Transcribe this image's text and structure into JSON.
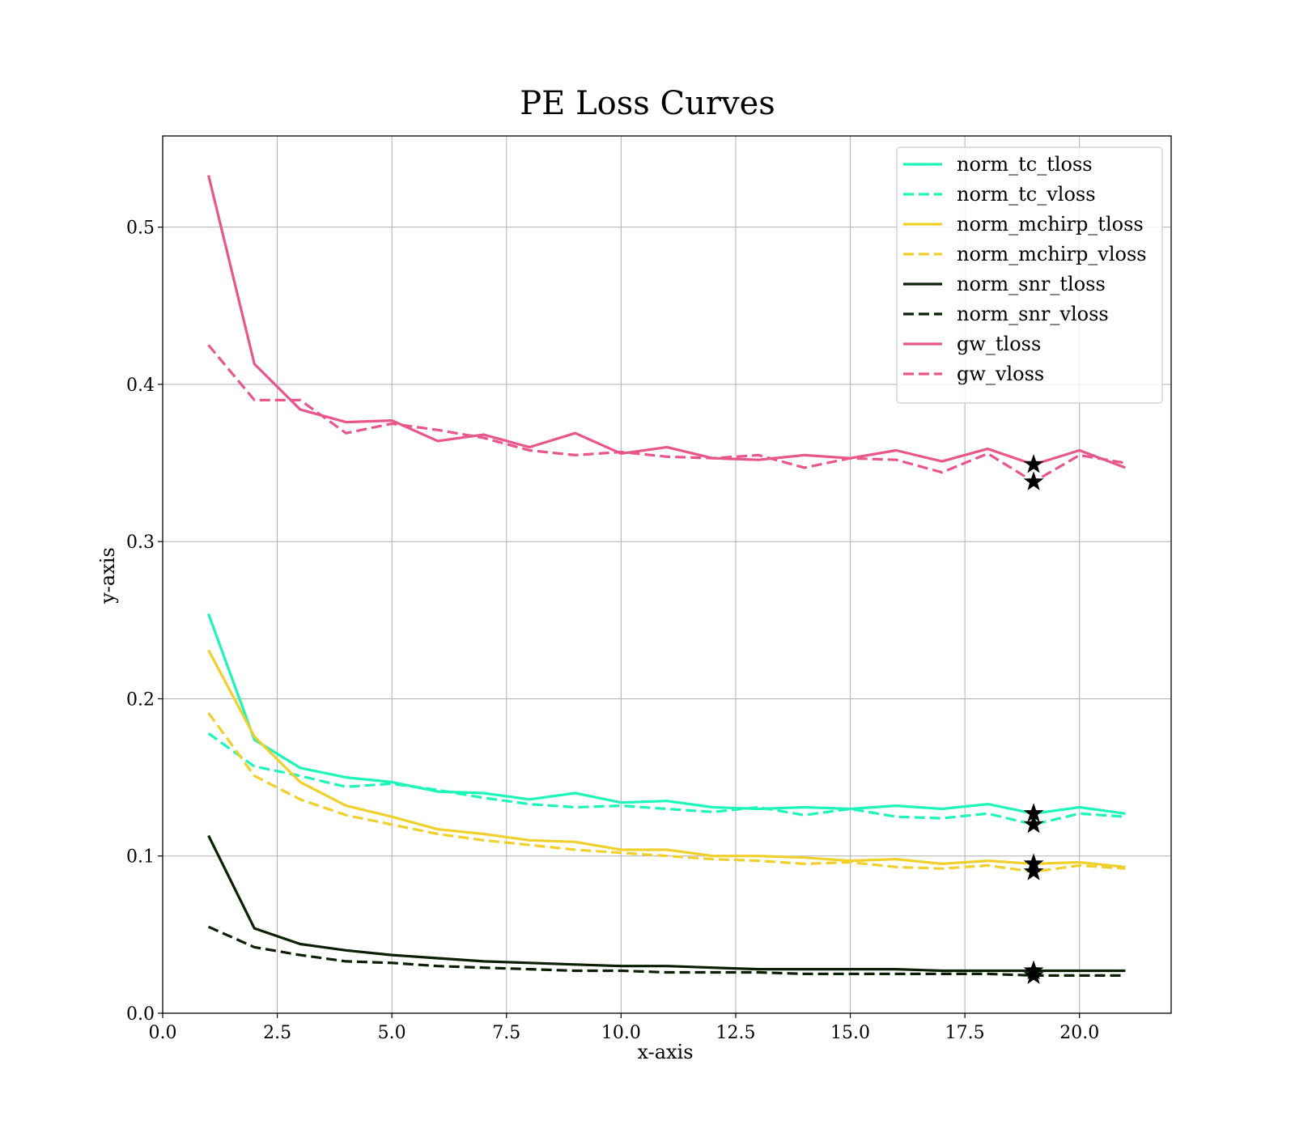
{
  "chart_data": {
    "type": "line",
    "title": "PE Loss Curves",
    "xlabel": "x-axis",
    "ylabel": "y-axis",
    "xlim": [
      0,
      22
    ],
    "ylim": [
      0,
      0.558
    ],
    "xticks": [
      0.0,
      2.5,
      5.0,
      7.5,
      10.0,
      12.5,
      15.0,
      17.5,
      20.0
    ],
    "xtick_labels": [
      "0.0",
      "2.5",
      "5.0",
      "7.5",
      "10.0",
      "12.5",
      "15.0",
      "17.5",
      "20.0"
    ],
    "yticks": [
      0.0,
      0.1,
      0.2,
      0.3,
      0.4,
      0.5
    ],
    "ytick_labels": [
      "0.0",
      "0.1",
      "0.2",
      "0.3",
      "0.4",
      "0.5"
    ],
    "grid": true,
    "legend_position": "upper right",
    "x": [
      1,
      2,
      3,
      4,
      5,
      6,
      7,
      8,
      9,
      10,
      11,
      12,
      13,
      14,
      15,
      16,
      17,
      18,
      19,
      20,
      21
    ],
    "series": [
      {
        "name": "norm_tc_tloss",
        "color": "#1ef5b8",
        "dash": "solid",
        "values": [
          0.254,
          0.174,
          0.156,
          0.15,
          0.147,
          0.141,
          0.14,
          0.136,
          0.14,
          0.134,
          0.135,
          0.131,
          0.13,
          0.131,
          0.13,
          0.132,
          0.13,
          0.133,
          0.127,
          0.131,
          0.127
        ]
      },
      {
        "name": "norm_tc_vloss",
        "color": "#1ef5b8",
        "dash": "dashed",
        "values": [
          0.178,
          0.157,
          0.151,
          0.144,
          0.146,
          0.142,
          0.137,
          0.133,
          0.131,
          0.132,
          0.13,
          0.128,
          0.131,
          0.126,
          0.13,
          0.125,
          0.124,
          0.127,
          0.12,
          0.127,
          0.125
        ]
      },
      {
        "name": "norm_mchirp_tloss",
        "color": "#f0d02c",
        "dash": "solid",
        "values": [
          0.231,
          0.176,
          0.147,
          0.132,
          0.125,
          0.117,
          0.114,
          0.11,
          0.109,
          0.104,
          0.104,
          0.1,
          0.1,
          0.099,
          0.097,
          0.098,
          0.095,
          0.097,
          0.095,
          0.096,
          0.093
        ]
      },
      {
        "name": "norm_mchirp_vloss",
        "color": "#f0d02c",
        "dash": "dashed",
        "values": [
          0.191,
          0.151,
          0.136,
          0.126,
          0.12,
          0.114,
          0.11,
          0.107,
          0.104,
          0.102,
          0.1,
          0.098,
          0.097,
          0.095,
          0.096,
          0.093,
          0.092,
          0.094,
          0.09,
          0.094,
          0.092
        ]
      },
      {
        "name": "norm_snr_tloss",
        "color": "#0a1f04",
        "dash": "solid",
        "values": [
          0.113,
          0.054,
          0.044,
          0.04,
          0.037,
          0.035,
          0.033,
          0.032,
          0.031,
          0.03,
          0.03,
          0.029,
          0.028,
          0.028,
          0.028,
          0.028,
          0.027,
          0.027,
          0.027,
          0.027,
          0.027
        ]
      },
      {
        "name": "norm_snr_vloss",
        "color": "#0a1f04",
        "dash": "dashed",
        "values": [
          0.055,
          0.042,
          0.037,
          0.033,
          0.032,
          0.03,
          0.029,
          0.028,
          0.027,
          0.027,
          0.026,
          0.026,
          0.026,
          0.025,
          0.025,
          0.025,
          0.025,
          0.025,
          0.024,
          0.024,
          0.024
        ]
      },
      {
        "name": "gw_tloss",
        "color": "#e8568a",
        "dash": "solid",
        "values": [
          0.533,
          0.413,
          0.384,
          0.376,
          0.377,
          0.364,
          0.368,
          0.36,
          0.369,
          0.356,
          0.36,
          0.353,
          0.352,
          0.355,
          0.353,
          0.358,
          0.351,
          0.359,
          0.349,
          0.358,
          0.347
        ]
      },
      {
        "name": "gw_vloss",
        "color": "#e8568a",
        "dash": "dashed",
        "values": [
          0.425,
          0.39,
          0.39,
          0.369,
          0.375,
          0.371,
          0.366,
          0.358,
          0.355,
          0.357,
          0.354,
          0.353,
          0.355,
          0.347,
          0.353,
          0.352,
          0.344,
          0.356,
          0.338,
          0.355,
          0.35
        ]
      }
    ],
    "best_markers": {
      "marker": "star",
      "x": 19,
      "points": [
        {
          "series": "norm_tc_tloss",
          "y": 0.127
        },
        {
          "series": "norm_tc_vloss",
          "y": 0.12
        },
        {
          "series": "norm_mchirp_tloss",
          "y": 0.095
        },
        {
          "series": "norm_mchirp_vloss",
          "y": 0.09
        },
        {
          "series": "norm_snr_tloss",
          "y": 0.027
        },
        {
          "series": "norm_snr_vloss",
          "y": 0.024
        },
        {
          "series": "gw_tloss",
          "y": 0.349
        },
        {
          "series": "gw_vloss",
          "y": 0.338
        }
      ]
    }
  }
}
